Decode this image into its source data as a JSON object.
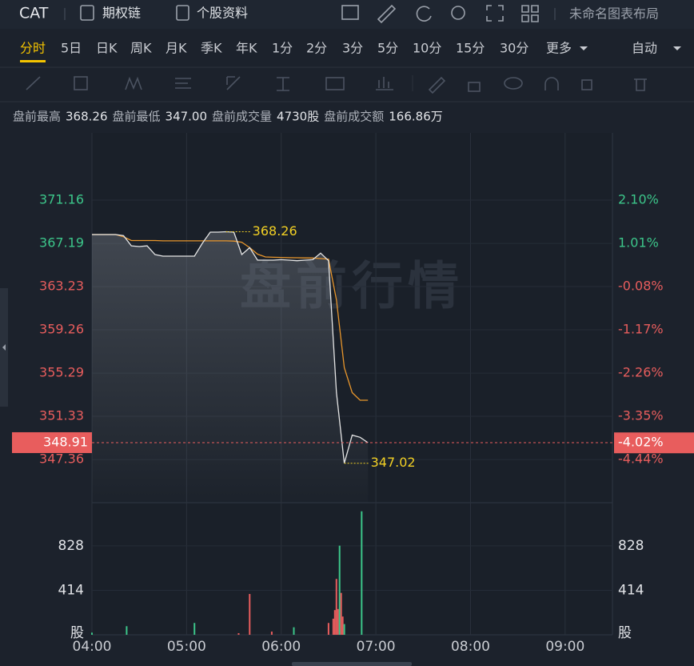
{
  "header": {
    "symbol": "CAT",
    "links": [
      "期权链",
      "个股资料"
    ],
    "layout_name": "未命名图表布局"
  },
  "periods": {
    "items": [
      "分时",
      "5日",
      "日K",
      "周K",
      "月K",
      "季K",
      "年K",
      "1分",
      "2分",
      "3分",
      "5分",
      "10分",
      "15分",
      "30分",
      "更多"
    ],
    "active": 0,
    "mode": "自动"
  },
  "stats": [
    {
      "label": "盘前最高",
      "value": "368.26"
    },
    {
      "label": "盘前最低",
      "value": "347.00"
    },
    {
      "label": "盘前成交量",
      "value": "4730股"
    },
    {
      "label": "盘前成交额",
      "value": "166.86万"
    }
  ],
  "chart_data": {
    "type": "line",
    "watermark": "盘前行情",
    "x": [
      "04:00",
      "04:05",
      "04:10",
      "04:15",
      "04:20",
      "04:25",
      "04:30",
      "04:35",
      "04:40",
      "04:45",
      "04:50",
      "04:55",
      "05:00",
      "05:05",
      "05:10",
      "05:15",
      "05:20",
      "05:25",
      "05:30",
      "05:35",
      "05:40",
      "05:45",
      "05:50",
      "05:55",
      "06:00",
      "06:05",
      "06:10",
      "06:15",
      "06:20",
      "06:25",
      "06:30",
      "06:35",
      "06:40",
      "06:45",
      "06:50",
      "06:55"
    ],
    "price": {
      "color": "#e6e6e6",
      "values": [
        368.0,
        368.0,
        368.0,
        368.0,
        367.9,
        366.97,
        366.9,
        366.97,
        366.17,
        366.02,
        366.02,
        366.02,
        366.02,
        366.02,
        367.2,
        368.22,
        368.22,
        368.26,
        368.22,
        366.17,
        366.8,
        365.65,
        365.65,
        365.65,
        365.7,
        365.65,
        365.6,
        365.65,
        365.7,
        366.3,
        365.6,
        353.5,
        347.02,
        349.6,
        349.4,
        348.91
      ]
    },
    "average": {
      "color": "#e8962c",
      "values": [
        368.0,
        368.0,
        368.0,
        368.0,
        367.8,
        367.45,
        367.45,
        367.45,
        367.45,
        367.42,
        367.42,
        367.42,
        367.42,
        367.42,
        367.42,
        367.42,
        367.42,
        367.42,
        367.4,
        367.3,
        366.8,
        366.2,
        365.95,
        365.92,
        365.9,
        365.88,
        365.87,
        365.86,
        365.85,
        365.8,
        365.75,
        362.0,
        355.8,
        353.5,
        352.8,
        352.8
      ]
    },
    "xlim": [
      "04:00",
      "09:30"
    ],
    "xticks": [
      "04:00",
      "05:00",
      "06:00",
      "07:00",
      "08:00",
      "09:00"
    ],
    "ylim": [
      343.4,
      377.33
    ],
    "yticks": [
      371.16,
      367.19,
      363.23,
      359.26,
      355.29,
      351.33,
      347.36
    ],
    "y2lim": [
      -5.53,
      3.8
    ],
    "y2ticks": [
      {
        "value": 2.1,
        "label": "2.10%"
      },
      {
        "value": 1.01,
        "label": "1.01%"
      },
      {
        "value": -0.08,
        "label": "-0.08%"
      },
      {
        "value": -1.17,
        "label": "-1.17%"
      },
      {
        "value": -2.26,
        "label": "-2.26%"
      },
      {
        "value": -3.35,
        "label": "-3.35%"
      },
      {
        "value": -4.44,
        "label": "-4.44%"
      }
    ],
    "up_color": "#3cc68a",
    "down_color": "#e85d5d",
    "grid": true,
    "last_price": 348.91,
    "last_pct": {
      "value": -4.02,
      "label": "-4.02%"
    },
    "annotations": [
      {
        "x": "05:25",
        "value": 368.26
      },
      {
        "x": "06:40",
        "value": 347.02
      }
    ],
    "annotation_color": "#f2d024",
    "volume": {
      "x": [
        "04:00",
        "04:22",
        "05:05",
        "05:33",
        "05:40",
        "05:54",
        "06:08",
        "06:30",
        "06:33",
        "06:34",
        "06:35",
        "06:36",
        "06:37",
        "06:38",
        "06:39",
        "06:40",
        "06:51"
      ],
      "values": [
        20,
        80,
        110,
        15,
        380,
        30,
        70,
        110,
        150,
        230,
        520,
        240,
        830,
        390,
        170,
        100,
        1150
      ],
      "colors": [
        "#3cc68a",
        "#3cc68a",
        "#3cc68a",
        "#e85d5d",
        "#e85d5d",
        "#e85d5d",
        "#3cc68a",
        "#e85d5d",
        "#e85d5d",
        "#e85d5d",
        "#e85d5d",
        "#e85d5d",
        "#3cc68a",
        "#e85d5d",
        "#e85d5d",
        "#3cc68a",
        "#3cc68a"
      ],
      "ylim": [
        0,
        1230
      ],
      "yticks": [
        {
          "value": 828,
          "label": "828"
        },
        {
          "value": 414,
          "label": "414"
        },
        {
          "value": 0,
          "label": "股"
        }
      ]
    }
  }
}
